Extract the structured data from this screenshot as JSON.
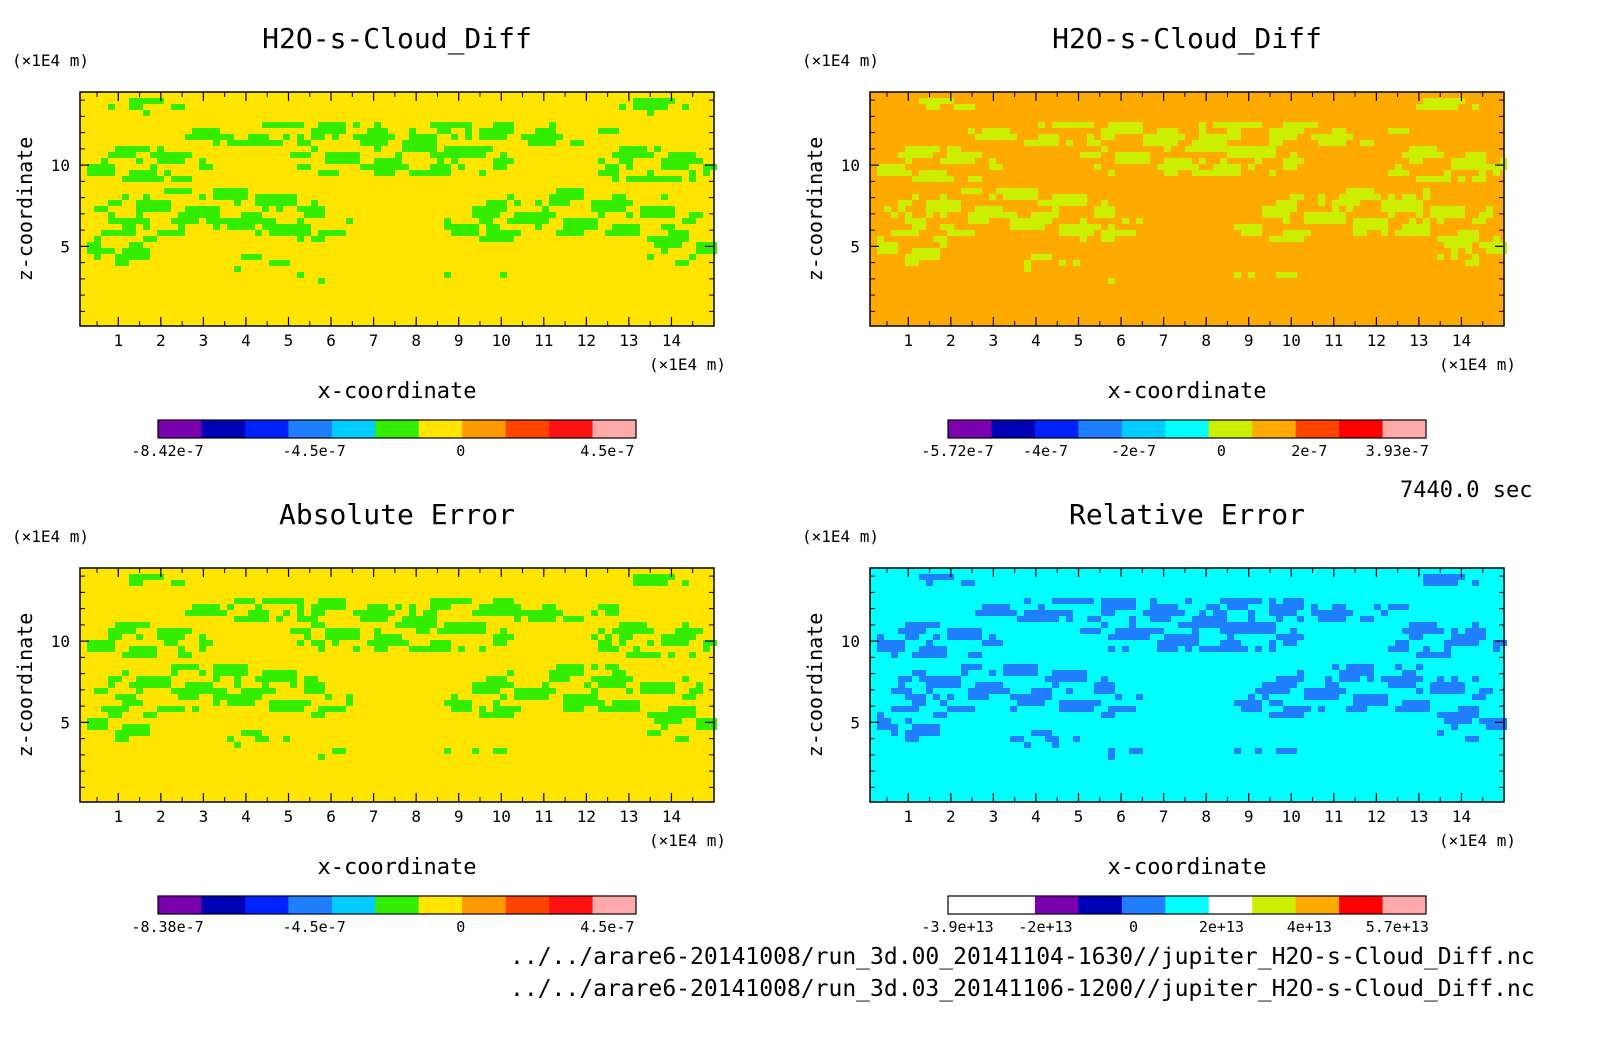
{
  "chart_data": [
    {
      "type": "heatmap",
      "title": "H2O-s-Cloud_Diff",
      "xlabel": "x-coordinate",
      "ylabel": "z-coordinate",
      "xunit": "(×1E4 m)",
      "yunit": "(×1E4 m)",
      "xlim": [
        0.1,
        15.0
      ],
      "ylim": [
        0.1,
        14.5
      ],
      "xticks": [
        "1",
        "2",
        "3",
        "4",
        "5",
        "6",
        "7",
        "8",
        "9",
        "10",
        "11",
        "12",
        "13",
        "14"
      ],
      "yticks": [
        "5",
        "10"
      ],
      "background_color": "#ffe500",
      "pattern_color": "#33ee00",
      "colorbar": {
        "colors": [
          "#7a00b0",
          "#0000b4",
          "#0022ff",
          "#1f7fff",
          "#00ccff",
          "#33ee00",
          "#ffe500",
          "#ff9900",
          "#ff4400",
          "#ff1111",
          "#ffaaaa"
        ],
        "tick_labels": [
          "-8.42e-7",
          "-4.5e-7",
          "0",
          "4.5e-7"
        ]
      }
    },
    {
      "type": "heatmap",
      "title": "H2O-s-Cloud_Diff",
      "xlabel": "x-coordinate",
      "ylabel": "z-coordinate",
      "xunit": "(×1E4 m)",
      "yunit": "(×1E4 m)",
      "xlim": [
        0.1,
        15.0
      ],
      "ylim": [
        0.1,
        14.5
      ],
      "xticks": [
        "1",
        "2",
        "3",
        "4",
        "5",
        "6",
        "7",
        "8",
        "9",
        "10",
        "11",
        "12",
        "13",
        "14"
      ],
      "yticks": [
        "5",
        "10"
      ],
      "background_color": "#ffaa00",
      "pattern_color": "#ccee00",
      "colorbar": {
        "colors": [
          "#7a00b0",
          "#0000b4",
          "#0022ff",
          "#1f7fff",
          "#00ccff",
          "#00ffff",
          "#ccee00",
          "#ffaa00",
          "#ff4400",
          "#ff0000",
          "#ffaaaa"
        ],
        "tick_labels": [
          "-5.72e-7",
          "-4e-7",
          "-2e-7",
          "0",
          "2e-7",
          "3.93e-7"
        ]
      }
    },
    {
      "type": "heatmap",
      "title": "Absolute Error",
      "xlabel": "x-coordinate",
      "ylabel": "z-coordinate",
      "xunit": "(×1E4 m)",
      "yunit": "(×1E4 m)",
      "xlim": [
        0.1,
        15.0
      ],
      "ylim": [
        0.1,
        14.5
      ],
      "xticks": [
        "1",
        "2",
        "3",
        "4",
        "5",
        "6",
        "7",
        "8",
        "9",
        "10",
        "11",
        "12",
        "13",
        "14"
      ],
      "yticks": [
        "5",
        "10"
      ],
      "background_color": "#ffe500",
      "pattern_color": "#33ee00",
      "colorbar": {
        "colors": [
          "#7a00b0",
          "#0000b4",
          "#0022ff",
          "#1f7fff",
          "#00ccff",
          "#33ee00",
          "#ffe500",
          "#ff9900",
          "#ff4400",
          "#ff1111",
          "#ffaaaa"
        ],
        "tick_labels": [
          "-8.38e-7",
          "-4.5e-7",
          "0",
          "4.5e-7"
        ]
      }
    },
    {
      "type": "heatmap",
      "title": "Relative Error",
      "xlabel": "x-coordinate",
      "ylabel": "z-coordinate",
      "xunit": "(×1E4 m)",
      "yunit": "(×1E4 m)",
      "xlim": [
        0.1,
        15.0
      ],
      "ylim": [
        0.1,
        14.5
      ],
      "xticks": [
        "1",
        "2",
        "3",
        "4",
        "5",
        "6",
        "7",
        "8",
        "9",
        "10",
        "11",
        "12",
        "13",
        "14"
      ],
      "yticks": [
        "5",
        "10"
      ],
      "background_color": "#00ffff",
      "pattern_color": "#1f7fff",
      "colorbar": {
        "colors": [
          "#ffffff",
          "#ffffff",
          "#7a00b0",
          "#0000b4",
          "#1f7fff",
          "#00ffff",
          "#ffffff",
          "#ccee00",
          "#ffaa00",
          "#ff0000",
          "#ffaaaa"
        ],
        "tick_labels": [
          "-3.9e+13",
          "-2e+13",
          "0",
          "2e+13",
          "4e+13",
          "5.7e+13"
        ]
      }
    }
  ],
  "time_label": "7440.0 sec",
  "footer": {
    "line1": "../../arare6-20141008/run_3d.00_20141104-1630//jupiter_H2O-s-Cloud_Diff.nc",
    "line2": "../../arare6-20141008/run_3d.03_20141106-1200//jupiter_H2O-s-Cloud_Diff.nc"
  }
}
